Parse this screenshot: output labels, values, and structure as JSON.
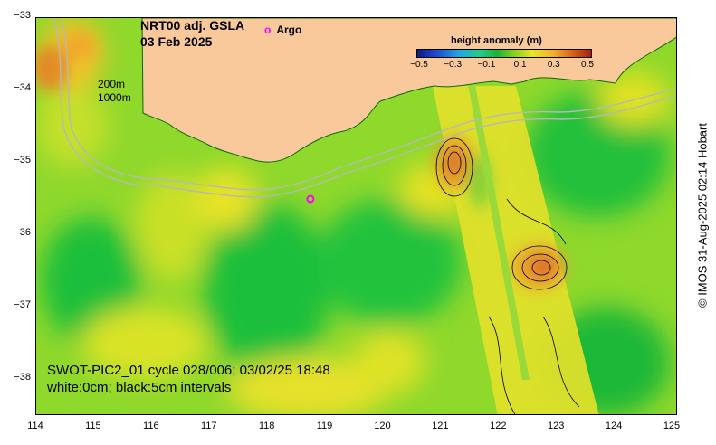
{
  "title": {
    "product": "NRT00 adj. GSLA",
    "date": "03 Feb 2025"
  },
  "legend": {
    "argo_label": "Argo",
    "argo_color": "#ff00ff"
  },
  "colorbar": {
    "title": "height anomaly (m)",
    "ticks": [
      "−0.5",
      "−0.3",
      "−0.1",
      "0.1",
      "0.3",
      "0.5"
    ],
    "range": [
      -0.5,
      0.5
    ]
  },
  "contours": {
    "label_200": "200m",
    "label_1000": "1000m",
    "line_color": "#b8b8b8"
  },
  "footer": {
    "line1": "SWOT-PIC2_01 cycle 028/006; 03/02/25 18:48",
    "line2": "white:0cm; black:5cm intervals"
  },
  "credit": "© IMOS 31-Aug-2025 02:14 Hobart",
  "axes": {
    "x_ticks": [
      "114",
      "115",
      "116",
      "117",
      "118",
      "119",
      "120",
      "121",
      "122",
      "123",
      "124",
      "125"
    ],
    "y_ticks": [
      "−33",
      "−34",
      "−35",
      "−36",
      "−37",
      "−38"
    ],
    "lon_range": [
      114,
      125
    ],
    "lat_range": [
      -38.5,
      -33
    ]
  },
  "argo_float": {
    "lon": 118.7,
    "lat": -35.5
  },
  "colors": {
    "land": "#f9c89b",
    "high_anomaly": "#e67e22",
    "mid_high": "#f0d21c",
    "neutral": "#9ee02a",
    "low_anomaly": "#1fbf3a"
  }
}
